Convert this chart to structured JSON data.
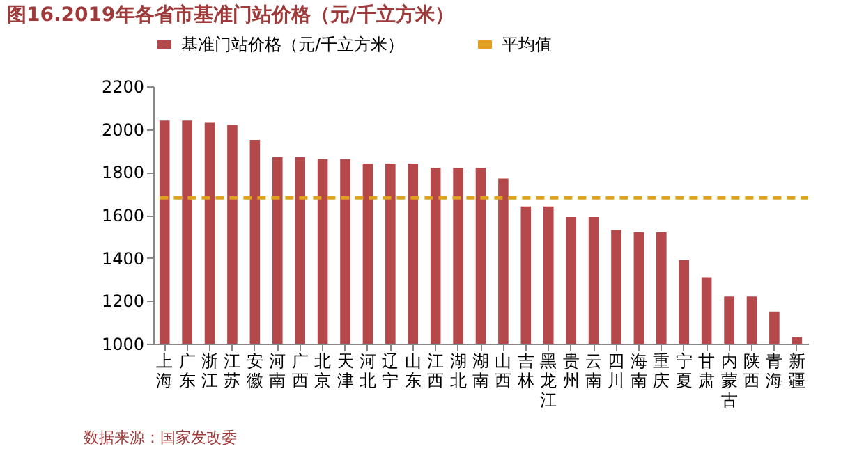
{
  "chart_data": {
    "type": "bar",
    "title": "图16.2019年各省市基准门站价格（元/千立方米）",
    "categories": [
      "上海",
      "广东",
      "浙江",
      "江苏",
      "安徽",
      "河南",
      "广西",
      "北京",
      "天津",
      "河北",
      "辽宁",
      "山东",
      "江西",
      "湖北",
      "湖南",
      "山西",
      "吉林",
      "黑龙江",
      "贵州",
      "云南",
      "四川",
      "海南",
      "重庆",
      "宁夏",
      "甘肃",
      "内蒙古",
      "陕西",
      "青海",
      "新疆"
    ],
    "series": [
      {
        "name": "基准门站价格（元/千立方米）",
        "color": "#b5484a",
        "values": [
          2040,
          2040,
          2030,
          2020,
          1950,
          1870,
          1870,
          1860,
          1860,
          1840,
          1840,
          1840,
          1820,
          1820,
          1820,
          1770,
          1640,
          1640,
          1590,
          1590,
          1530,
          1520,
          1520,
          1390,
          1310,
          1220,
          1220,
          1150,
          1030
        ]
      }
    ],
    "ref_lines": [
      {
        "axis": "y",
        "value": 1680,
        "label": "平均值",
        "color": "#e0a020",
        "line_style": "dashed"
      }
    ],
    "ylim": [
      1000,
      2200
    ],
    "yticks": [
      1000,
      1200,
      1400,
      1600,
      1800,
      2000,
      2200
    ],
    "grid": false,
    "legend": "top",
    "annotations": [
      "数据来源：国家发改委"
    ]
  }
}
